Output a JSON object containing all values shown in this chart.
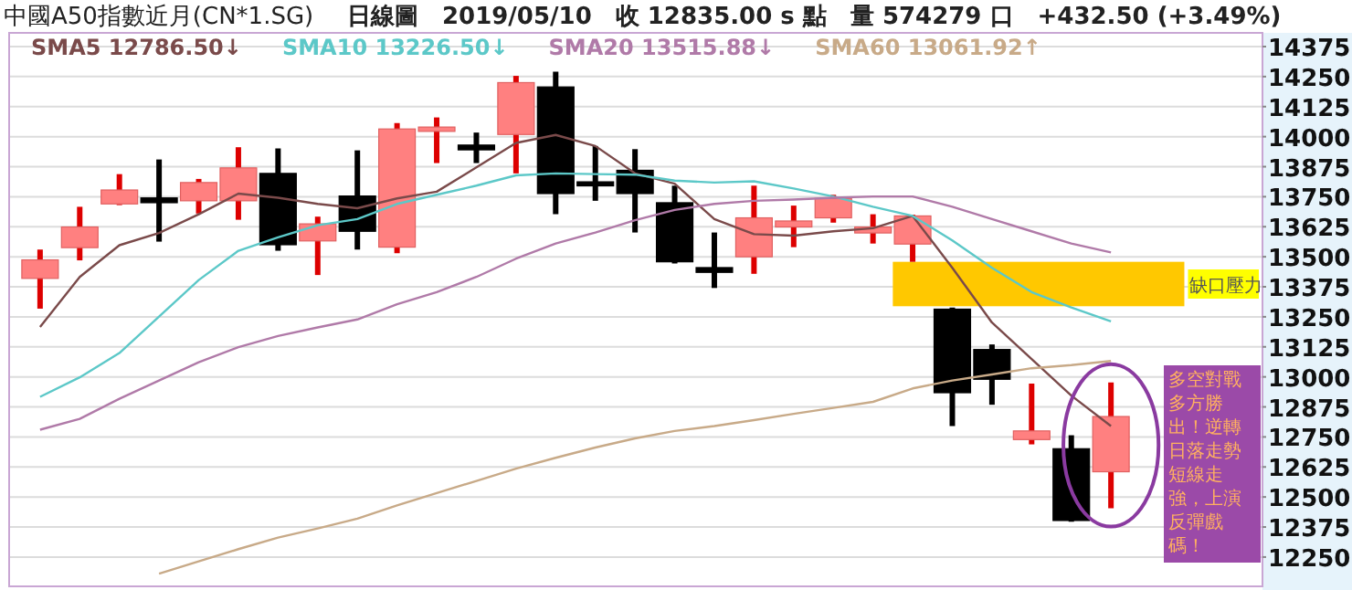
{
  "chart_data": {
    "type": "candlestick",
    "title": "中國A50指數近月(CN*1.SG)",
    "subtitle": "日線圖　2019/05/10　收 12835.00 s 點　量 574279 口　+432.50 (+3.49%)",
    "categories": [
      null,
      null,
      null,
      null,
      null,
      null,
      null,
      null,
      null,
      null,
      null,
      null,
      null,
      null,
      null,
      null,
      null,
      null,
      null,
      null,
      null,
      null,
      null,
      null,
      null,
      null,
      null,
      null
    ],
    "ohlc": [
      [
        13410,
        13530,
        13284,
        13487
      ],
      [
        13538,
        13708,
        13485,
        13624
      ],
      [
        13720,
        13844,
        13715,
        13778
      ],
      [
        13745,
        13905,
        13563,
        13725
      ],
      [
        13733,
        13824,
        13680,
        13809
      ],
      [
        13733,
        13956,
        13654,
        13870
      ],
      [
        13847,
        13951,
        13525,
        13550
      ],
      [
        13566,
        13667,
        13424,
        13637
      ],
      [
        13753,
        13943,
        13530,
        13606
      ],
      [
        13540,
        14057,
        13515,
        14032
      ],
      [
        14022,
        14080,
        13890,
        14040
      ],
      [
        13965,
        14017,
        13890,
        13945
      ],
      [
        14009,
        14253,
        13847,
        14225
      ],
      [
        14207,
        14270,
        13677,
        13763
      ],
      [
        13812,
        13961,
        13733,
        13795
      ],
      [
        13860,
        13948,
        13601,
        13763
      ],
      [
        13725,
        13796,
        13472,
        13479
      ],
      [
        13455,
        13601,
        13370,
        13435
      ],
      [
        13500,
        13796,
        13429,
        13662
      ],
      [
        13624,
        13713,
        13540,
        13649
      ],
      [
        13662,
        13758,
        13642,
        13743
      ],
      [
        13599,
        13677,
        13555,
        13624
      ],
      [
        13553,
        13675,
        13479,
        13670
      ],
      [
        13282,
        13289,
        12795,
        12934
      ],
      [
        13114,
        13135,
        12884,
        12990
      ],
      [
        12739,
        12972,
        12719,
        12775
      ],
      [
        12701,
        12757,
        12397,
        12402
      ],
      [
        12605,
        12977,
        12453,
        12835
      ]
    ],
    "series": [
      {
        "type": "line",
        "name": "SMA5 12786.50↓",
        "color": "#7a4a4a",
        "values": [
          13208,
          13416,
          13548,
          13599,
          13677,
          13763,
          13746,
          13720,
          13702,
          13743,
          13771,
          13872,
          13974,
          14007,
          13961,
          13847,
          13804,
          13657,
          13594,
          13588,
          13606,
          13619,
          13670,
          13454,
          13226,
          13074,
          12922,
          12795
        ]
      },
      {
        "type": "line",
        "name": "SMA10 13226.50↓",
        "color": "#5cc8c8",
        "values": [
          12917,
          12998,
          13099,
          13251,
          13403,
          13525,
          13581,
          13631,
          13657,
          13720,
          13758,
          13796,
          13839,
          13847,
          13844,
          13842,
          13817,
          13809,
          13814,
          13784,
          13751,
          13708,
          13670,
          13568,
          13454,
          13353,
          13289,
          13231
        ]
      },
      {
        "type": "line",
        "name": "SMA20 13515.88↓",
        "color": "#b07aa8",
        "values": [
          12780,
          12825,
          12909,
          12985,
          13061,
          13124,
          13170,
          13206,
          13239,
          13302,
          13353,
          13416,
          13492,
          13555,
          13601,
          13652,
          13695,
          13720,
          13733,
          13738,
          13746,
          13751,
          13751,
          13708,
          13657,
          13606,
          13555,
          13518
        ]
      },
      {
        "type": "line",
        "name": "SMA60 13061.92↑",
        "color": "#c8aa88",
        "values": [
          null,
          null,
          null,
          12181,
          12232,
          12283,
          12331,
          12369,
          12410,
          12465,
          12516,
          12567,
          12618,
          12663,
          12706,
          12744,
          12775,
          12795,
          12820,
          12846,
          12871,
          12896,
          12952,
          12985,
          13010,
          13036,
          13049,
          13066
        ]
      }
    ],
    "ylim": [
      12128,
      14432
    ],
    "yticks": [
      12250,
      12375,
      12500,
      12625,
      12750,
      12875,
      13000,
      13125,
      13250,
      13375,
      13500,
      13625,
      13750,
      13875,
      14000,
      14125,
      14250,
      14375
    ],
    "tick_labels": "y",
    "grid": "y",
    "legend": "top",
    "bands": [
      {
        "axis": "y",
        "from": 13294,
        "to": 13479,
        "label": "缺口壓力",
        "color": "#ffc800"
      }
    ],
    "annotations": [
      "多空對戰多方勝出！逆轉日落走勢短線走強，上演反彈戲碼！"
    ]
  }
}
